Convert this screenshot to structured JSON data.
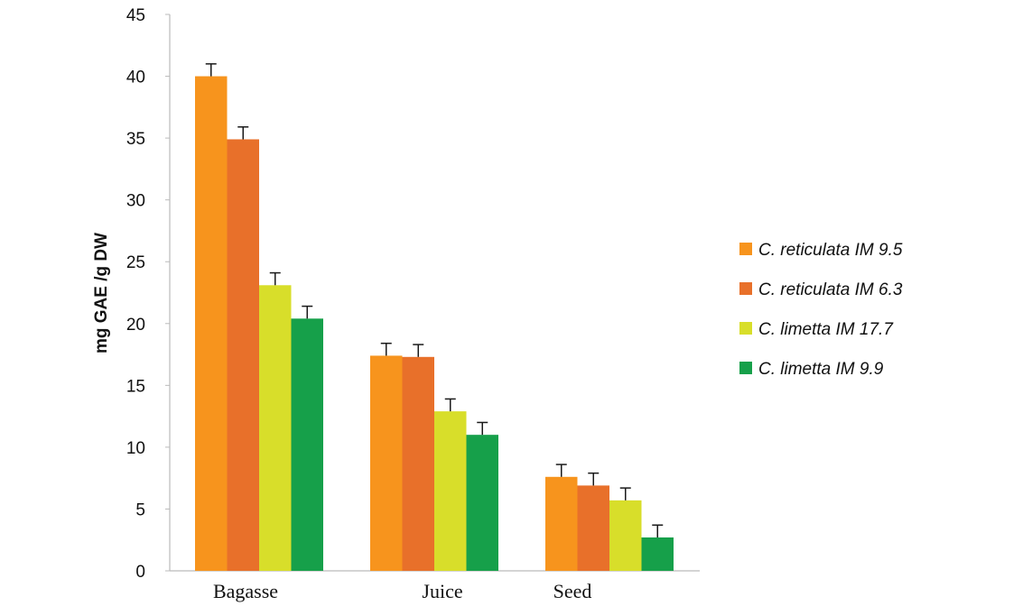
{
  "chart_data": {
    "type": "bar",
    "ylabel": "mg GAE /g DW",
    "xlabel": "",
    "ylim": [
      0,
      45
    ],
    "yticks": [
      0,
      5,
      10,
      15,
      20,
      25,
      30,
      35,
      40,
      45
    ],
    "grid": false,
    "legend_position": "right",
    "categories": [
      "Bagasse",
      "Juice",
      "Seed"
    ],
    "series": [
      {
        "name": "C. reticulata  IM 9.5",
        "color": "#F7941D",
        "values": [
          40.0,
          17.4,
          7.6
        ],
        "errors": [
          1.0,
          1.0,
          1.0
        ]
      },
      {
        "name": "C. reticulata  IM 6.3",
        "color": "#E8702A",
        "values": [
          34.9,
          17.3,
          6.9
        ],
        "errors": [
          1.0,
          1.0,
          1.0
        ]
      },
      {
        "name": "C. limetta  IM 17.7",
        "color": "#D8DE2A",
        "values": [
          23.1,
          12.9,
          5.7
        ],
        "errors": [
          1.0,
          1.0,
          1.0
        ]
      },
      {
        "name": "C. limetta  IM 9.9",
        "color": "#16A04A",
        "values": [
          20.4,
          11.0,
          2.7
        ],
        "errors": [
          1.0,
          1.0,
          1.0
        ]
      }
    ]
  }
}
